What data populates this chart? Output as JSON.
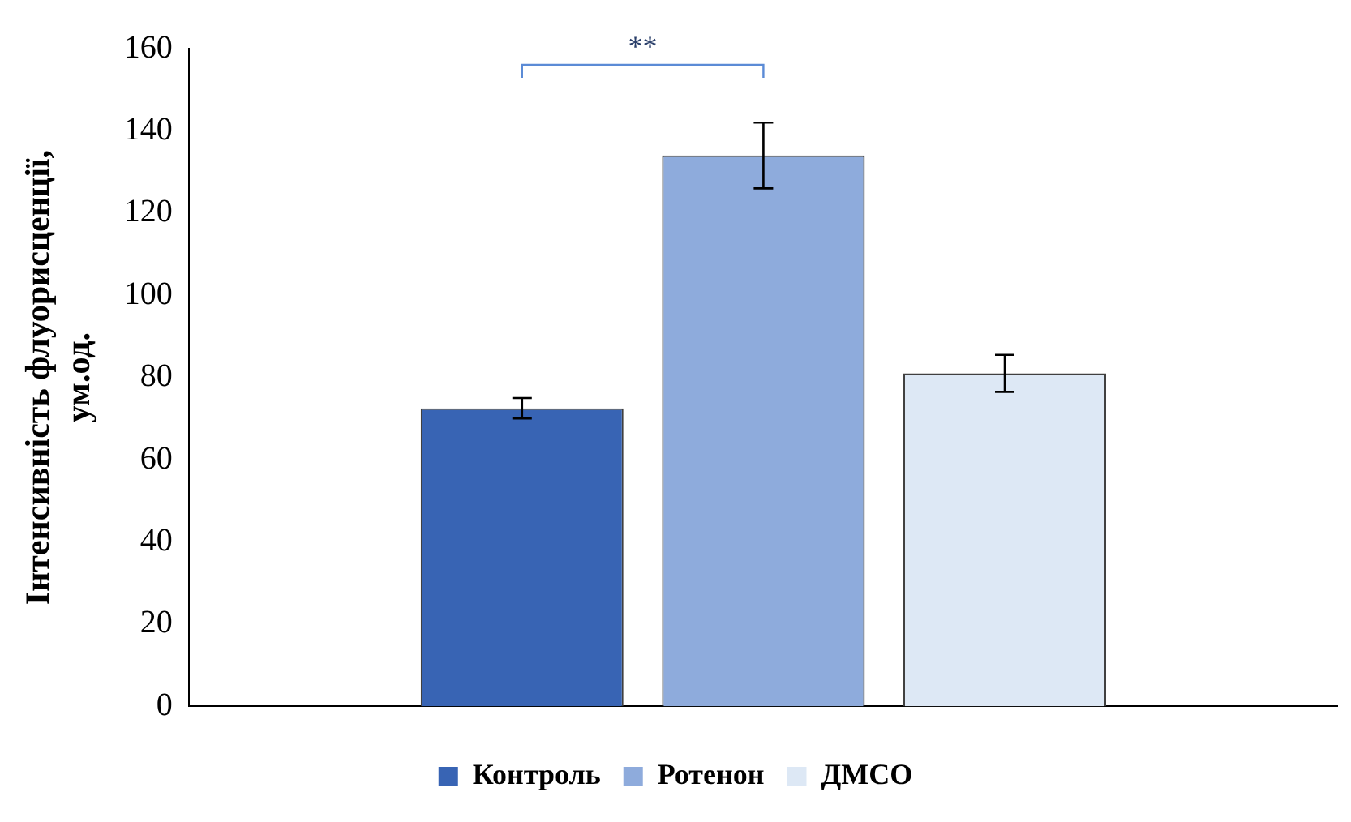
{
  "chart_data": {
    "type": "bar",
    "ylabel": "Інтенсивність флуорисценції, ум.од.",
    "categories": [
      null
    ],
    "series": [
      {
        "name": "Контроль",
        "color": "#3864b4",
        "values": [
          72.5
        ],
        "errors": [
          2.5
        ]
      },
      {
        "name": "Ротенон",
        "color": "#8eabdc",
        "values": [
          134
        ],
        "errors": [
          8
        ]
      },
      {
        "name": "ДМСО",
        "color": "#dde8f5",
        "values": [
          81
        ],
        "errors": [
          4.5
        ]
      }
    ],
    "ylim": [
      0,
      160
    ],
    "yticks": [
      0,
      20,
      40,
      60,
      80,
      100,
      120,
      140,
      160
    ],
    "grid": false,
    "legend": "bottom",
    "annotations": [
      "**"
    ]
  }
}
